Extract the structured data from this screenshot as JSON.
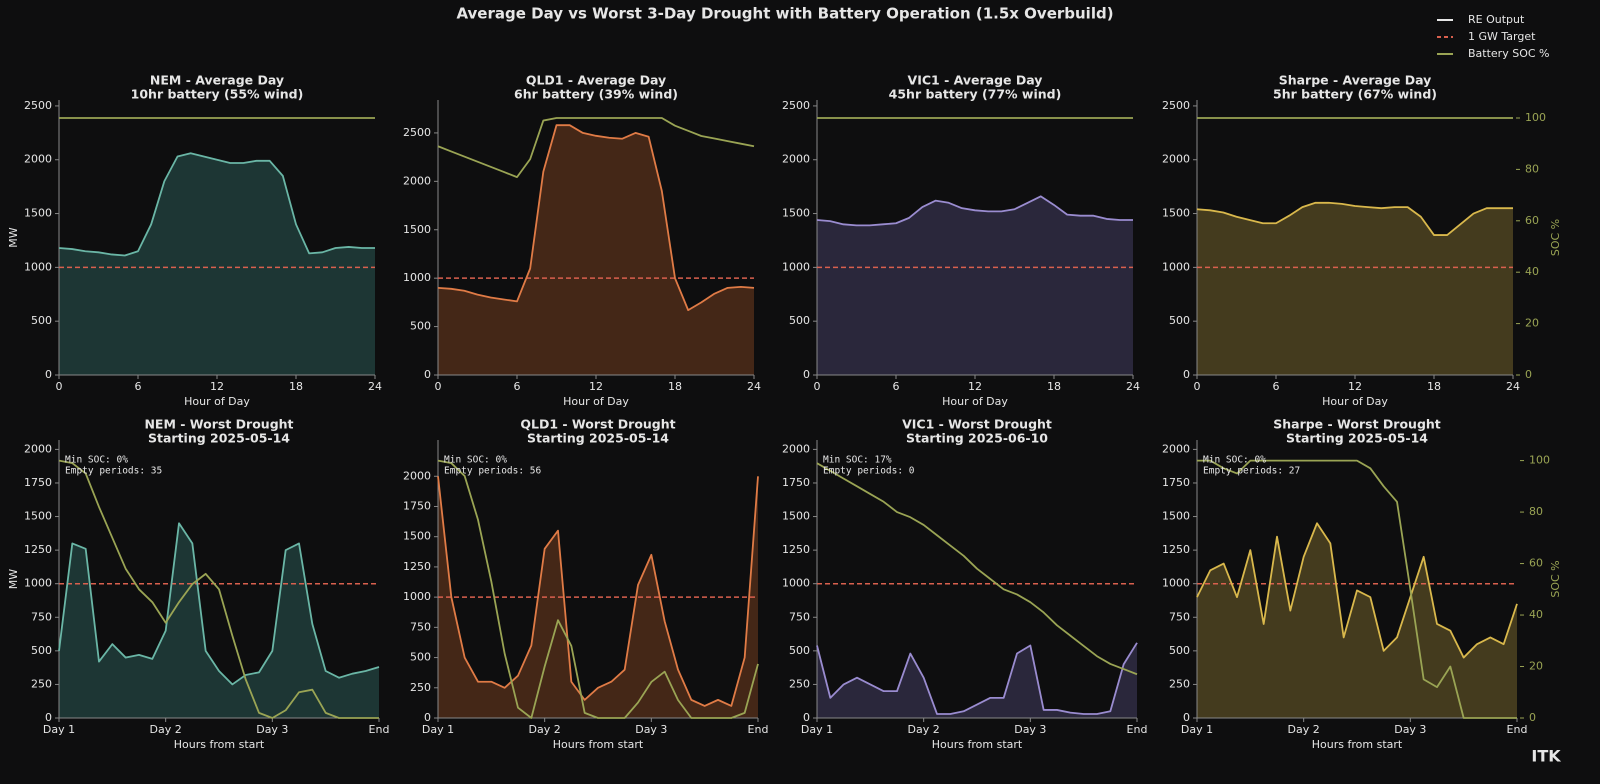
{
  "title": "Average Day vs Worst 3-Day Drought with Battery Operation (1.5x Overbuild)",
  "brand": "ITK",
  "legend": [
    {
      "name": "RE Output",
      "color": "#e6e6e6",
      "dash": false
    },
    {
      "name": "1 GW Target",
      "color": "#d9604e",
      "dash": true
    },
    {
      "name": "Battery SOC %",
      "color": "#9aa454",
      "dash": false
    }
  ],
  "chart_data": [
    {
      "type": "area",
      "title": "NEM - Average Day",
      "subtitle": "10hr battery (55% wind)",
      "xlabel": "Hour of Day",
      "ylabel": "MW",
      "x": [
        0,
        1,
        2,
        3,
        4,
        5,
        6,
        7,
        8,
        9,
        10,
        11,
        12,
        13,
        14,
        15,
        16,
        17,
        18,
        19,
        20,
        21,
        22,
        23,
        24
      ],
      "xlim": [
        0,
        24
      ],
      "xticks": [
        0,
        6,
        12,
        18,
        24
      ],
      "ylim": [
        0,
        2555
      ],
      "yticks": [
        0,
        500,
        1000,
        1500,
        2000,
        2500
      ],
      "y2lim": [
        0,
        107
      ],
      "target": 1000,
      "target_color": "#d9604e",
      "series": [
        {
          "color": "#6ab6a6",
          "fill": "#1f3b38",
          "values": [
            1180,
            1170,
            1150,
            1140,
            1120,
            1110,
            1150,
            1400,
            1800,
            2030,
            2060,
            2030,
            2000,
            1970,
            1970,
            1990,
            1990,
            1850,
            1400,
            1130,
            1140,
            1180,
            1190,
            1180,
            1180
          ]
        },
        {
          "color": "#9aa454",
          "axis": "y2",
          "values": [
            100,
            100,
            100,
            100,
            100,
            100,
            100,
            100,
            100,
            100,
            100,
            100,
            100,
            100,
            100,
            100,
            100,
            100,
            100,
            100,
            100,
            100,
            100,
            100,
            100
          ]
        }
      ]
    },
    {
      "type": "area",
      "title": "QLD1 - Average Day",
      "subtitle": "6hr battery (39% wind)",
      "xlabel": "Hour of Day",
      "x": [
        0,
        1,
        2,
        3,
        4,
        5,
        6,
        7,
        8,
        9,
        10,
        11,
        12,
        13,
        14,
        15,
        16,
        17,
        18,
        19,
        20,
        21,
        22,
        23,
        24
      ],
      "xlim": [
        0,
        24
      ],
      "xticks": [
        0,
        6,
        12,
        18,
        24
      ],
      "ylim": [
        0,
        2840
      ],
      "yticks": [
        0,
        500,
        1000,
        1500,
        2000,
        2500
      ],
      "y2lim": [
        0,
        107
      ],
      "target": 1000,
      "target_color": "#d9604e",
      "series": [
        {
          "color": "#e07b46",
          "fill": "#4a2a18",
          "values": [
            900,
            890,
            870,
            830,
            800,
            780,
            760,
            1100,
            2100,
            2580,
            2580,
            2500,
            2470,
            2450,
            2440,
            2500,
            2460,
            1900,
            1000,
            670,
            750,
            840,
            900,
            910,
            900
          ]
        },
        {
          "color": "#9aa454",
          "axis": "y2",
          "values": [
            89,
            87,
            85,
            83,
            81,
            79,
            77,
            84,
            99,
            100,
            100,
            100,
            100,
            100,
            100,
            100,
            100,
            100,
            97,
            95,
            93,
            92,
            91,
            90,
            89
          ]
        }
      ]
    },
    {
      "type": "area",
      "title": "VIC1 - Average Day",
      "subtitle": "45hr battery (77% wind)",
      "xlabel": "Hour of Day",
      "x": [
        0,
        1,
        2,
        3,
        4,
        5,
        6,
        7,
        8,
        9,
        10,
        11,
        12,
        13,
        14,
        15,
        16,
        17,
        18,
        19,
        20,
        21,
        22,
        23,
        24
      ],
      "xlim": [
        0,
        24
      ],
      "xticks": [
        0,
        6,
        12,
        18,
        24
      ],
      "ylim": [
        0,
        2555
      ],
      "yticks": [
        0,
        500,
        1000,
        1500,
        2000,
        2500
      ],
      "y2lim": [
        0,
        107
      ],
      "target": 1000,
      "target_color": "#d9604e",
      "series": [
        {
          "color": "#9a8cd0",
          "fill": "#2e2a40",
          "values": [
            1440,
            1430,
            1400,
            1390,
            1390,
            1400,
            1410,
            1460,
            1560,
            1620,
            1600,
            1550,
            1530,
            1520,
            1520,
            1540,
            1600,
            1660,
            1580,
            1490,
            1480,
            1480,
            1450,
            1440,
            1440
          ]
        },
        {
          "color": "#9aa454",
          "axis": "y2",
          "values": [
            100,
            100,
            100,
            100,
            100,
            100,
            100,
            100,
            100,
            100,
            100,
            100,
            100,
            100,
            100,
            100,
            100,
            100,
            100,
            100,
            100,
            100,
            100,
            100,
            100
          ]
        }
      ]
    },
    {
      "type": "area",
      "title": "Sharpe - Average Day",
      "subtitle": "5hr battery (67% wind)",
      "xlabel": "Hour of Day",
      "y2label": "SOC %",
      "x": [
        0,
        1,
        2,
        3,
        4,
        5,
        6,
        7,
        8,
        9,
        10,
        11,
        12,
        13,
        14,
        15,
        16,
        17,
        18,
        19,
        20,
        21,
        22,
        23,
        24
      ],
      "xlim": [
        0,
        24
      ],
      "xticks": [
        0,
        6,
        12,
        18,
        24
      ],
      "ylim": [
        0,
        2555
      ],
      "yticks": [
        0,
        500,
        1000,
        1500,
        2000,
        2500
      ],
      "y2lim": [
        0,
        107
      ],
      "y2ticks": [
        0,
        20,
        40,
        60,
        80,
        100
      ],
      "target": 1000,
      "target_color": "#d9604e",
      "series": [
        {
          "color": "#d9b84c",
          "fill": "#4a4020",
          "values": [
            1540,
            1530,
            1510,
            1470,
            1440,
            1410,
            1410,
            1480,
            1560,
            1600,
            1600,
            1590,
            1570,
            1560,
            1550,
            1560,
            1560,
            1470,
            1300,
            1300,
            1400,
            1500,
            1550,
            1550,
            1550
          ]
        },
        {
          "color": "#9aa454",
          "axis": "y2",
          "values": [
            100,
            100,
            100,
            100,
            100,
            100,
            100,
            100,
            100,
            100,
            100,
            100,
            100,
            100,
            100,
            100,
            100,
            100,
            100,
            100,
            100,
            100,
            100,
            100,
            100
          ]
        }
      ]
    },
    {
      "type": "area",
      "title": "NEM - Worst Drought",
      "subtitle": "Starting 2025-05-14",
      "xlabel": "Hours from start",
      "ylabel": "MW",
      "annotation": [
        "Min SOC: 0%",
        "Empty periods: 35"
      ],
      "x": [
        0,
        3,
        6,
        9,
        12,
        15,
        18,
        21,
        24,
        27,
        30,
        33,
        36,
        39,
        42,
        45,
        48,
        51,
        54,
        57,
        60,
        63,
        66,
        69,
        72
      ],
      "xlim": [
        0,
        72
      ],
      "xticks": [
        {
          "value": 0,
          "label": "Day 1"
        },
        {
          "value": 24,
          "label": "Day 2"
        },
        {
          "value": 48,
          "label": "Day 3"
        },
        {
          "value": 72,
          "label": "End"
        }
      ],
      "ylim": [
        0,
        2070
      ],
      "yticks": [
        0,
        250,
        500,
        750,
        1000,
        1250,
        1500,
        1750,
        2000
      ],
      "y2lim": [
        0,
        108
      ],
      "target": 1000,
      "target_color": "#d9604e",
      "series": [
        {
          "color": "#6ab6a6",
          "fill": "#1f3b38",
          "values": [
            500,
            1300,
            1260,
            420,
            550,
            450,
            470,
            440,
            650,
            1450,
            1300,
            500,
            350,
            250,
            320,
            340,
            500,
            1250,
            1300,
            700,
            350,
            300,
            330,
            350,
            380
          ]
        },
        {
          "color": "#9aa454",
          "axis": "y2",
          "values": [
            100,
            99,
            95,
            82,
            70,
            58,
            50,
            45,
            37,
            45,
            52,
            56,
            50,
            32,
            15,
            2,
            0,
            3,
            10,
            11,
            2,
            0,
            0,
            0,
            0
          ]
        }
      ]
    },
    {
      "type": "area",
      "title": "QLD1 - Worst Drought",
      "subtitle": "Starting 2025-05-14",
      "xlabel": "Hours from start",
      "annotation": [
        "Min SOC: 0%",
        "Empty periods: 56"
      ],
      "x": [
        0,
        3,
        6,
        9,
        12,
        15,
        18,
        21,
        24,
        27,
        30,
        33,
        36,
        39,
        42,
        45,
        48,
        51,
        54,
        57,
        60,
        63,
        66,
        69,
        72
      ],
      "xlim": [
        0,
        72
      ],
      "xticks": [
        {
          "value": 0,
          "label": "Day 1"
        },
        {
          "value": 24,
          "label": "Day 2"
        },
        {
          "value": 48,
          "label": "Day 3"
        },
        {
          "value": 72,
          "label": "End"
        }
      ],
      "ylim": [
        0,
        2300
      ],
      "yticks": [
        0,
        250,
        500,
        750,
        1000,
        1250,
        1500,
        1750,
        2000
      ],
      "y2lim": [
        0,
        108
      ],
      "target": 1000,
      "target_color": "#d9604e",
      "series": [
        {
          "color": "#e07b46",
          "fill": "#4a2a18",
          "values": [
            2000,
            1000,
            500,
            300,
            300,
            250,
            350,
            600,
            1400,
            1550,
            300,
            150,
            250,
            300,
            400,
            1100,
            1350,
            800,
            400,
            150,
            100,
            150,
            100,
            500,
            2000
          ]
        },
        {
          "color": "#9aa454",
          "axis": "y2",
          "values": [
            100,
            99,
            94,
            77,
            53,
            25,
            4,
            0,
            20,
            38,
            28,
            2,
            0,
            0,
            0,
            6,
            14,
            18,
            7,
            0,
            0,
            0,
            0,
            2,
            21
          ]
        }
      ]
    },
    {
      "type": "area",
      "title": "VIC1 - Worst Drought",
      "subtitle": "Starting 2025-06-10",
      "xlabel": "Hours from start",
      "annotation": [
        "Min SOC: 17%",
        "Empty periods: 0"
      ],
      "x": [
        0,
        3,
        6,
        9,
        12,
        15,
        18,
        21,
        24,
        27,
        30,
        33,
        36,
        39,
        42,
        45,
        48,
        51,
        54,
        57,
        60,
        63,
        66,
        69,
        72
      ],
      "xlim": [
        0,
        72
      ],
      "xticks": [
        {
          "value": 0,
          "label": "Day 1"
        },
        {
          "value": 24,
          "label": "Day 2"
        },
        {
          "value": 48,
          "label": "Day 3"
        },
        {
          "value": 72,
          "label": "End"
        }
      ],
      "ylim": [
        0,
        2070
      ],
      "yticks": [
        0,
        250,
        500,
        750,
        1000,
        1250,
        1500,
        1750,
        2000
      ],
      "y2lim": [
        0,
        108
      ],
      "target": 1000,
      "target_color": "#d9604e",
      "series": [
        {
          "color": "#9a8cd0",
          "fill": "#2e2a40",
          "values": [
            540,
            150,
            250,
            300,
            250,
            200,
            200,
            480,
            300,
            30,
            30,
            50,
            100,
            150,
            150,
            480,
            540,
            60,
            60,
            40,
            30,
            30,
            50,
            400,
            560
          ]
        },
        {
          "color": "#9aa454",
          "axis": "y2",
          "values": [
            99,
            96,
            93,
            90,
            87,
            84,
            80,
            78,
            75,
            71,
            67,
            63,
            58,
            54,
            50,
            48,
            45,
            41,
            36,
            32,
            28,
            24,
            21,
            19,
            17
          ]
        }
      ]
    },
    {
      "type": "area",
      "title": "Sharpe - Worst Drought",
      "subtitle": "Starting 2025-05-14",
      "xlabel": "Hours from start",
      "y2label": "SOC %",
      "annotation": [
        "Min SOC: 0%",
        "Empty periods: 27"
      ],
      "x": [
        0,
        3,
        6,
        9,
        12,
        15,
        18,
        21,
        24,
        27,
        30,
        33,
        36,
        39,
        42,
        45,
        48,
        51,
        54,
        57,
        60,
        63,
        66,
        69,
        72
      ],
      "xlim": [
        0,
        72
      ],
      "xticks": [
        {
          "value": 0,
          "label": "Day 1"
        },
        {
          "value": 24,
          "label": "Day 2"
        },
        {
          "value": 48,
          "label": "Day 3"
        },
        {
          "value": 72,
          "label": "End"
        }
      ],
      "ylim": [
        0,
        2070
      ],
      "yticks": [
        0,
        250,
        500,
        750,
        1000,
        1250,
        1500,
        1750,
        2000
      ],
      "y2lim": [
        0,
        108
      ],
      "y2ticks": [
        0,
        20,
        40,
        60,
        80,
        100
      ],
      "target": 1000,
      "target_color": "#d9604e",
      "series": [
        {
          "color": "#d9b84c",
          "fill": "#4a4020",
          "values": [
            900,
            1100,
            1150,
            900,
            1250,
            700,
            1350,
            800,
            1200,
            1450,
            1300,
            600,
            950,
            900,
            500,
            600,
            900,
            1200,
            700,
            650,
            450,
            550,
            600,
            550,
            850
          ]
        },
        {
          "color": "#9aa454",
          "axis": "y2",
          "values": [
            100,
            100,
            97,
            95,
            100,
            100,
            100,
            100,
            100,
            100,
            100,
            100,
            100,
            97,
            90,
            84,
            50,
            15,
            12,
            20,
            0,
            0,
            0,
            0,
            0
          ]
        }
      ]
    }
  ]
}
